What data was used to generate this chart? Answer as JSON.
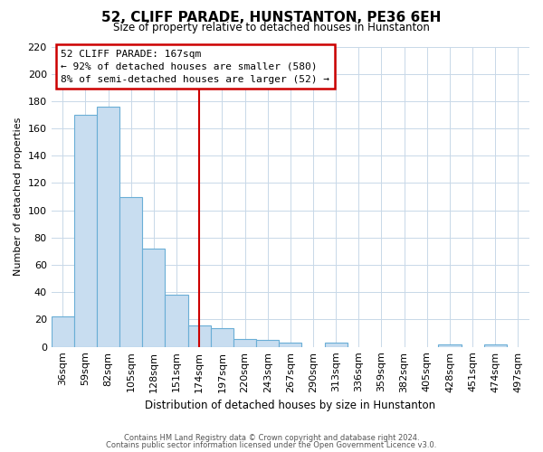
{
  "title": "52, CLIFF PARADE, HUNSTANTON, PE36 6EH",
  "subtitle": "Size of property relative to detached houses in Hunstanton",
  "xlabel": "Distribution of detached houses by size in Hunstanton",
  "ylabel": "Number of detached properties",
  "footnote1": "Contains HM Land Registry data © Crown copyright and database right 2024.",
  "footnote2": "Contains public sector information licensed under the Open Government Licence v3.0.",
  "bin_labels": [
    "36sqm",
    "59sqm",
    "82sqm",
    "105sqm",
    "128sqm",
    "151sqm",
    "174sqm",
    "197sqm",
    "220sqm",
    "243sqm",
    "267sqm",
    "290sqm",
    "313sqm",
    "336sqm",
    "359sqm",
    "382sqm",
    "405sqm",
    "428sqm",
    "451sqm",
    "474sqm",
    "497sqm"
  ],
  "bar_values": [
    22,
    170,
    176,
    110,
    72,
    38,
    16,
    14,
    6,
    5,
    3,
    0,
    3,
    0,
    0,
    0,
    0,
    2,
    0,
    2,
    0
  ],
  "bar_color": "#c8ddf0",
  "bar_edge_color": "#6aaed6",
  "vline_x_index": 6,
  "vline_color": "#cc0000",
  "annotation_title": "52 CLIFF PARADE: 167sqm",
  "annotation_line1": "← 92% of detached houses are smaller (580)",
  "annotation_line2": "8% of semi-detached houses are larger (52) →",
  "annotation_box_color": "#ffffff",
  "annotation_box_edge": "#cc0000",
  "ylim": [
    0,
    220
  ],
  "yticks": [
    0,
    20,
    40,
    60,
    80,
    100,
    120,
    140,
    160,
    180,
    200,
    220
  ],
  "background_color": "#ffffff",
  "grid_color": "#c8d8e8"
}
